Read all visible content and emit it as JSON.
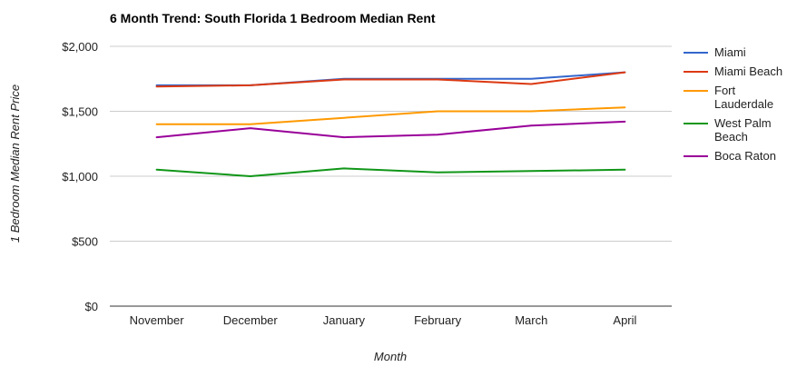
{
  "chart_data": {
    "type": "line",
    "title": "6 Month Trend: South Florida 1 Bedroom Median Rent",
    "xlabel": "Month",
    "ylabel": "1 Bedroom Median Rent Price",
    "categories": [
      "November",
      "December",
      "January",
      "February",
      "March",
      "April"
    ],
    "ylim": [
      0,
      2000
    ],
    "yticks": [
      0,
      500,
      1000,
      1500,
      2000
    ],
    "ytick_labels": [
      "$0",
      "$500",
      "$1,000",
      "$1,500",
      "$2,000"
    ],
    "grid": true,
    "legend_position": "right",
    "series": [
      {
        "name": "Miami",
        "color": "#3366cc",
        "values": [
          1700,
          1700,
          1750,
          1750,
          1750,
          1800
        ]
      },
      {
        "name": "Miami Beach",
        "color": "#dc3912",
        "values": [
          1690,
          1700,
          1745,
          1745,
          1710,
          1800
        ]
      },
      {
        "name": "Fort Lauderdale",
        "legend_lines": [
          "Fort",
          "Lauderdale"
        ],
        "color": "#ff9900",
        "values": [
          1400,
          1400,
          1450,
          1500,
          1500,
          1530
        ]
      },
      {
        "name": "West Palm Beach",
        "legend_lines": [
          "West Palm",
          "Beach"
        ],
        "color": "#109618",
        "values": [
          1050,
          1000,
          1060,
          1030,
          1040,
          1050
        ]
      },
      {
        "name": "Boca Raton",
        "color": "#990099",
        "values": [
          1300,
          1370,
          1300,
          1320,
          1390,
          1420
        ]
      }
    ]
  }
}
